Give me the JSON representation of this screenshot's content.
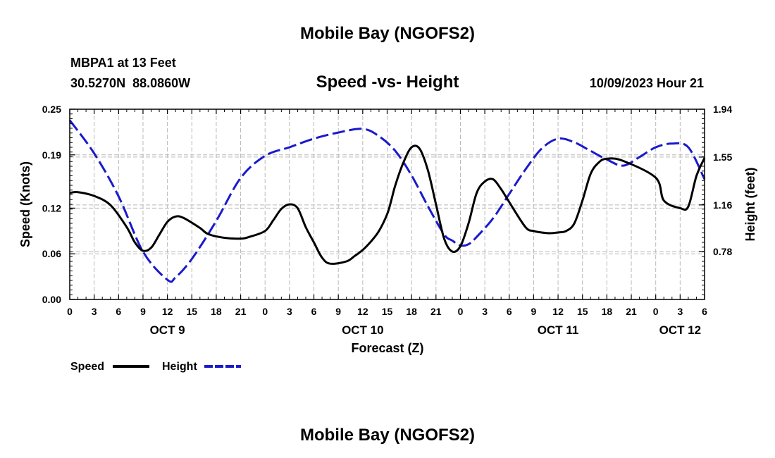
{
  "page": {
    "title_top": "Mobile Bay (NGOFS2)",
    "title_bottom": "Mobile Bay (NGOFS2)"
  },
  "chart_data": {
    "type": "line",
    "title": "Speed -vs- Height",
    "station": "MBPA1 at 13 Feet",
    "coords": "30.5270N  88.0860W",
    "datetime": "10/09/2023 Hour 21",
    "xlabel": "Forecast (Z)",
    "ylabel_left": "Speed (Knots)",
    "ylabel_right": "Height (feet)",
    "x_range_hours": [
      0,
      78
    ],
    "x_ticks": [
      {
        "h": 0,
        "label": "0"
      },
      {
        "h": 3,
        "label": "3"
      },
      {
        "h": 6,
        "label": "6"
      },
      {
        "h": 9,
        "label": "9"
      },
      {
        "h": 12,
        "label": "12"
      },
      {
        "h": 15,
        "label": "15"
      },
      {
        "h": 18,
        "label": "18"
      },
      {
        "h": 21,
        "label": "21"
      },
      {
        "h": 24,
        "label": "0"
      },
      {
        "h": 27,
        "label": "3"
      },
      {
        "h": 30,
        "label": "6"
      },
      {
        "h": 33,
        "label": "9"
      },
      {
        "h": 36,
        "label": "12"
      },
      {
        "h": 39,
        "label": "15"
      },
      {
        "h": 42,
        "label": "18"
      },
      {
        "h": 45,
        "label": "21"
      },
      {
        "h": 48,
        "label": "0"
      },
      {
        "h": 51,
        "label": "3"
      },
      {
        "h": 54,
        "label": "6"
      },
      {
        "h": 57,
        "label": "9"
      },
      {
        "h": 60,
        "label": "12"
      },
      {
        "h": 63,
        "label": "15"
      },
      {
        "h": 66,
        "label": "18"
      },
      {
        "h": 69,
        "label": "21"
      },
      {
        "h": 72,
        "label": "0"
      },
      {
        "h": 75,
        "label": "3"
      },
      {
        "h": 78,
        "label": "6"
      }
    ],
    "day_labels": [
      {
        "h": 12,
        "label": "OCT 9"
      },
      {
        "h": 36,
        "label": "OCT 10"
      },
      {
        "h": 60,
        "label": "OCT 11"
      },
      {
        "h": 75,
        "label": "OCT 12"
      }
    ],
    "y_left": {
      "range": [
        0,
        0.25
      ],
      "ticks": [
        0.0,
        0.06,
        0.12,
        0.19,
        0.25
      ],
      "tick_labels": [
        "0.00",
        "0.06",
        "0.12",
        "0.19",
        "0.25"
      ]
    },
    "y_right": {
      "range": [
        0.39,
        1.94
      ],
      "ticks": [
        0.78,
        1.16,
        1.55,
        1.94
      ],
      "tick_labels": [
        "0.78",
        "1.16",
        "1.55",
        "1.94"
      ]
    },
    "grid": true,
    "legend_position": "bottom-left",
    "series": [
      {
        "name": "Speed",
        "axis": "left",
        "color": "#000000",
        "style": "solid",
        "x": [
          0,
          1,
          3,
          5,
          7,
          8,
          9,
          10,
          11,
          12,
          13,
          14,
          16,
          17,
          19,
          21,
          22,
          24,
          25,
          26,
          27,
          28,
          29,
          30,
          31,
          32,
          34,
          35,
          36,
          37,
          38,
          39,
          39.5,
          40,
          41,
          42,
          43,
          44,
          45,
          46,
          47,
          48,
          49,
          50,
          51,
          52,
          53,
          54,
          56,
          57,
          58,
          59,
          60,
          61,
          62,
          63,
          64,
          65,
          66,
          68,
          72,
          73,
          75,
          76,
          77,
          78
        ],
        "y": [
          0.14,
          0.141,
          0.136,
          0.124,
          0.095,
          0.075,
          0.064,
          0.068,
          0.085,
          0.102,
          0.109,
          0.107,
          0.094,
          0.086,
          0.081,
          0.08,
          0.082,
          0.09,
          0.104,
          0.119,
          0.125,
          0.12,
          0.095,
          0.075,
          0.055,
          0.047,
          0.05,
          0.057,
          0.065,
          0.076,
          0.09,
          0.112,
          0.13,
          0.15,
          0.18,
          0.2,
          0.198,
          0.17,
          0.125,
          0.08,
          0.063,
          0.07,
          0.1,
          0.14,
          0.155,
          0.158,
          0.145,
          0.128,
          0.095,
          0.09,
          0.088,
          0.087,
          0.088,
          0.09,
          0.1,
          0.13,
          0.165,
          0.18,
          0.185,
          0.182,
          0.16,
          0.13,
          0.12,
          0.122,
          0.162,
          0.186
        ],
        "note_x_is_hours": true
      },
      {
        "name": "Height",
        "axis": "right",
        "color": "#1a1acc",
        "style": "dashed",
        "x": [
          0,
          3,
          6,
          9,
          12,
          13,
          15,
          18,
          21,
          24,
          27,
          30,
          33,
          36,
          38,
          40,
          42,
          44,
          46,
          47,
          48,
          49,
          50,
          52,
          54,
          56,
          58,
          60,
          62,
          64,
          66,
          68,
          70,
          72,
          74,
          76,
          78
        ],
        "y": [
          1.85,
          1.58,
          1.23,
          0.78,
          0.55,
          0.57,
          0.72,
          1.03,
          1.38,
          1.56,
          1.63,
          1.7,
          1.75,
          1.78,
          1.72,
          1.6,
          1.4,
          1.15,
          0.92,
          0.87,
          0.83,
          0.84,
          0.9,
          1.05,
          1.25,
          1.45,
          1.62,
          1.7,
          1.67,
          1.6,
          1.53,
          1.48,
          1.55,
          1.63,
          1.66,
          1.63,
          1.37
        ]
      }
    ],
    "legend": [
      {
        "label": "Speed",
        "color": "#000000",
        "style": "solid"
      },
      {
        "label": "Height",
        "color": "#1a1acc",
        "style": "dashed"
      }
    ]
  }
}
